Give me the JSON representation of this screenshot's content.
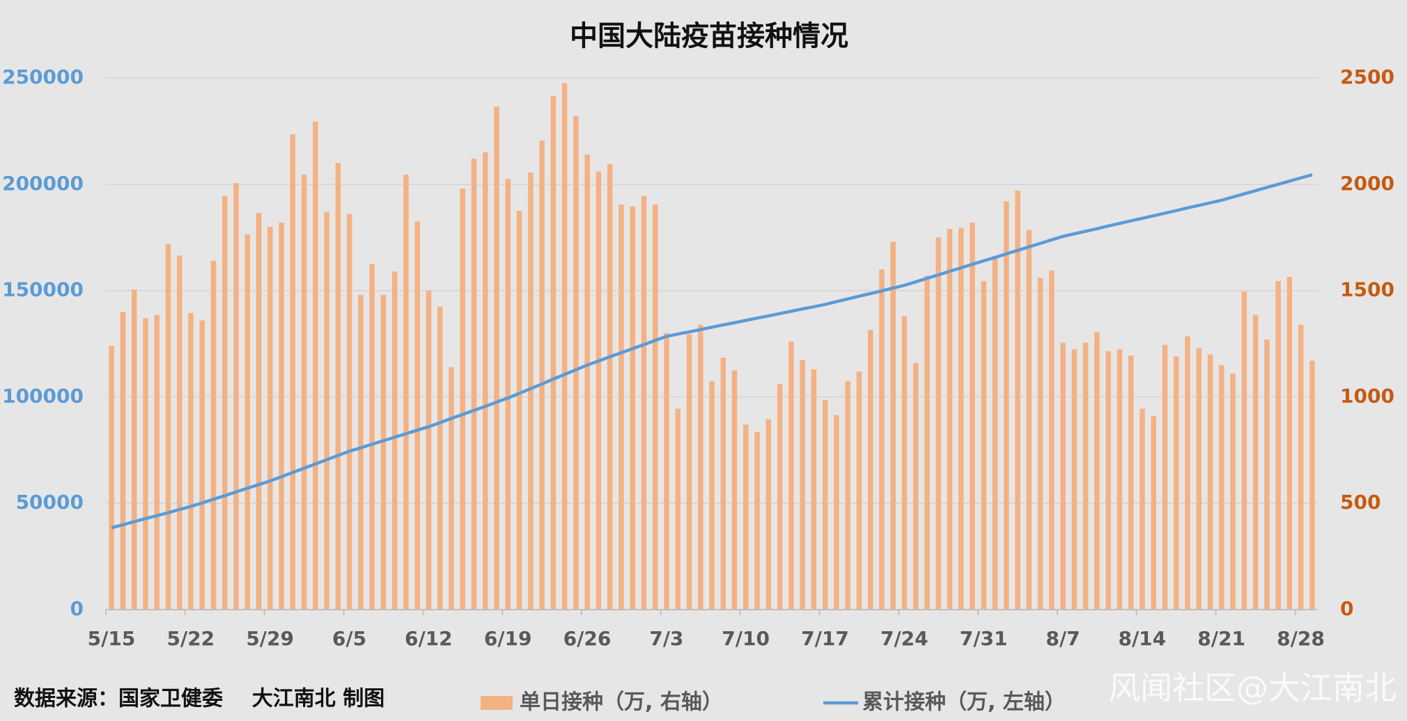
{
  "chart_data": {
    "type": "bar",
    "title": "中国大陆疫苗接种情况",
    "categories": [
      "5/15",
      null,
      null,
      null,
      null,
      null,
      null,
      "5/22",
      null,
      null,
      null,
      null,
      null,
      null,
      "5/29",
      null,
      null,
      null,
      null,
      null,
      null,
      "6/5",
      null,
      null,
      null,
      null,
      null,
      null,
      "6/12",
      null,
      null,
      null,
      null,
      null,
      null,
      "6/19",
      null,
      null,
      null,
      null,
      null,
      null,
      "6/26",
      null,
      null,
      null,
      null,
      null,
      null,
      "7/3",
      null,
      null,
      null,
      null,
      null,
      null,
      "7/10",
      null,
      null,
      null,
      null,
      null,
      null,
      "7/17",
      null,
      null,
      null,
      null,
      null,
      null,
      "7/24",
      null,
      null,
      null,
      null,
      null,
      null,
      "7/31",
      null,
      null,
      null,
      null,
      null,
      null,
      "8/7",
      null,
      null,
      null,
      null,
      null,
      null,
      "8/14",
      null,
      null,
      null,
      null,
      null,
      null,
      "8/21",
      null,
      null,
      null,
      null,
      null,
      null,
      "8/28",
      null
    ],
    "series": [
      {
        "name": "单日接种（万, 右轴）",
        "type": "bar",
        "axis": "y2",
        "color": "#f4b183",
        "values": [
          1240,
          1400,
          1505,
          1370,
          1385,
          1720,
          1665,
          1395,
          1360,
          1640,
          1945,
          2005,
          1765,
          1865,
          1800,
          1820,
          2235,
          2045,
          2295,
          1870,
          2100,
          1860,
          1480,
          1625,
          1480,
          1590,
          2045,
          1825,
          1500,
          1425,
          1140,
          1980,
          2120,
          2150,
          2365,
          2025,
          1875,
          2055,
          2205,
          2415,
          2475,
          2320,
          2140,
          2060,
          2095,
          1905,
          1895,
          1945,
          1905,
          1300,
          945,
          1295,
          1340,
          1075,
          1185,
          1125,
          870,
          835,
          895,
          1060,
          1260,
          1175,
          1130,
          985,
          915,
          1075,
          1120,
          1315,
          1600,
          1730,
          1380,
          1160,
          1570,
          1750,
          1790,
          1795,
          1820,
          1545,
          1660,
          1920,
          1970,
          1785,
          1560,
          1595,
          1255,
          1225,
          1255,
          1305,
          1215,
          1225,
          1195,
          945,
          910,
          1245,
          1190,
          1285,
          1230,
          1200,
          1150,
          1110,
          1495,
          1385,
          1270,
          1545,
          1565,
          1340,
          1170
        ]
      },
      {
        "name": "累计接种（万, 左轴）",
        "type": "line",
        "color": "#5b9bd5",
        "values": [
          38500,
          39900,
          41400,
          42800,
          44200,
          45600,
          47100,
          48500,
          50200,
          51900,
          53600,
          55400,
          57100,
          58800,
          60500,
          62500,
          64500,
          66500,
          68500,
          70500,
          72500,
          74500,
          76100,
          77800,
          79400,
          81100,
          82700,
          84400,
          86000,
          87900,
          89900,
          91800,
          93700,
          95600,
          97600,
          99500,
          101700,
          103900,
          106100,
          108400,
          110600,
          112800,
          115000,
          116900,
          118900,
          120800,
          122700,
          124600,
          126600,
          128500,
          129600,
          130600,
          131700,
          132800,
          133900,
          134900,
          136000,
          137100,
          138100,
          139200,
          140300,
          141400,
          142400,
          143500,
          144800,
          146100,
          147400,
          148600,
          149900,
          151200,
          152500,
          154100,
          155800,
          157400,
          159100,
          160700,
          162400,
          164000,
          165600,
          167300,
          168900,
          170600,
          172200,
          173900,
          175500,
          176700,
          177900,
          179100,
          180400,
          181600,
          182800,
          184000,
          185200,
          186400,
          187600,
          188900,
          190100,
          191300,
          192500,
          194000,
          195500,
          197000,
          198500,
          200000,
          201500,
          203000,
          204500
        ]
      }
    ],
    "ylim": [
      0,
      250000
    ],
    "yticks": [
      0,
      50000,
      100000,
      150000,
      200000,
      250000
    ],
    "y2lim": [
      0,
      2500
    ],
    "y2ticks": [
      0,
      500,
      1000,
      1500,
      2000,
      2500
    ],
    "grid": true
  },
  "source": "数据来源：国家卫健委    大江南北 制图",
  "watermark": "风闻社区@大江南北"
}
